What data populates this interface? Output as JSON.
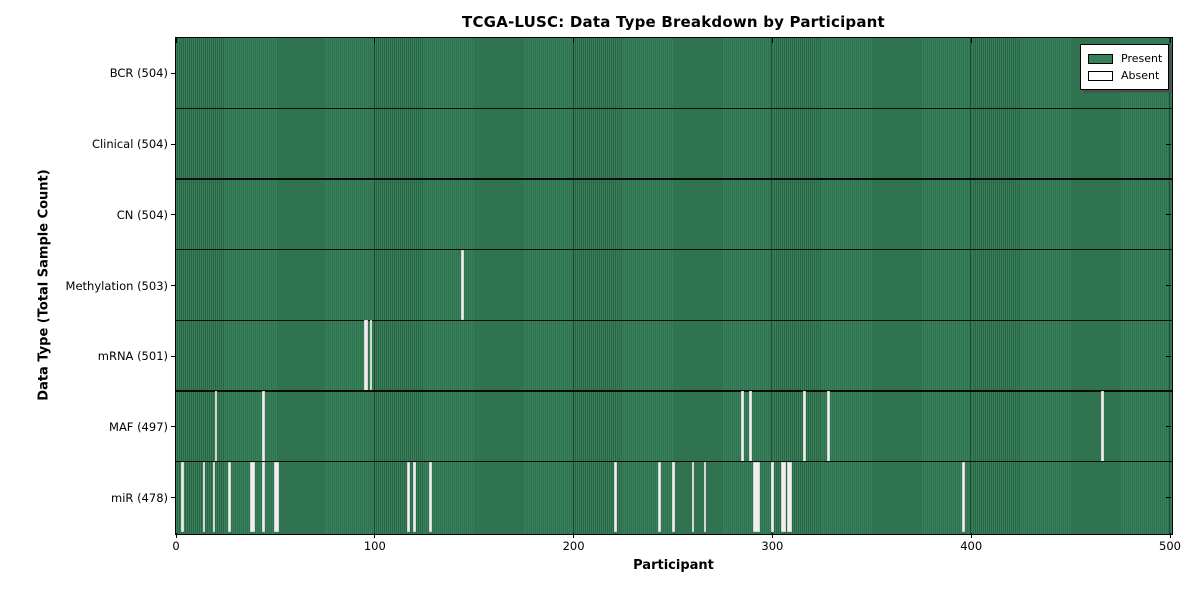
{
  "figure": {
    "title": "TCGA-LUSC: Data Type Breakdown by Participant",
    "xlabel": "Participant",
    "ylabel": "Data Type (Total Sample Count)"
  },
  "legend": {
    "items": [
      {
        "label": "Present",
        "color": "#37815a"
      },
      {
        "label": "Absent",
        "color": "#ffffff"
      }
    ]
  },
  "chart_data": {
    "type": "heatmap",
    "title": "TCGA-LUSC: Data Type Breakdown by Participant",
    "xlabel": "Participant",
    "ylabel": "Data Type (Total Sample Count)",
    "x_ticks": [
      0,
      100,
      200,
      300,
      400,
      500
    ],
    "xlim": [
      0,
      500.5
    ],
    "grid": "vertical-at-xticks",
    "legend_position": "upper-right-inside",
    "colors": {
      "present": "#2e8b57",
      "absent": "#ffffff"
    },
    "rows": [
      {
        "label": "BCR",
        "total": 504,
        "display": "BCR (504)",
        "absent": []
      },
      {
        "label": "Clinical",
        "total": 504,
        "display": "Clinical (504)",
        "absent": []
      },
      {
        "label": "CN",
        "total": 504,
        "display": "CN (504)",
        "absent": []
      },
      {
        "label": "Methylation",
        "total": 503,
        "display": "Methylation (503)",
        "absent": [
          {
            "pos": 144,
            "w": 1
          }
        ]
      },
      {
        "label": "mRNA",
        "total": 501,
        "display": "mRNA (501)",
        "absent": [
          {
            "pos": 95,
            "w": 2
          },
          {
            "pos": 98,
            "w": 1
          }
        ]
      },
      {
        "label": "MAF",
        "total": 497,
        "display": "MAF (497)",
        "absent": [
          {
            "pos": 20,
            "w": 1
          },
          {
            "pos": 44,
            "w": 1
          },
          {
            "pos": 285,
            "w": 1
          },
          {
            "pos": 289,
            "w": 1
          },
          {
            "pos": 316,
            "w": 1
          },
          {
            "pos": 328,
            "w": 1
          },
          {
            "pos": 466,
            "w": 1
          }
        ]
      },
      {
        "label": "miR",
        "total": 478,
        "display": "miR (478)",
        "absent": [
          {
            "pos": 3,
            "w": 1
          },
          {
            "pos": 14,
            "w": 1
          },
          {
            "pos": 19,
            "w": 1
          },
          {
            "pos": 27,
            "w": 1
          },
          {
            "pos": 38,
            "w": 2
          },
          {
            "pos": 44,
            "w": 1
          },
          {
            "pos": 50,
            "w": 2
          },
          {
            "pos": 117,
            "w": 1
          },
          {
            "pos": 120,
            "w": 1
          },
          {
            "pos": 128,
            "w": 1
          },
          {
            "pos": 221,
            "w": 1
          },
          {
            "pos": 243,
            "w": 1
          },
          {
            "pos": 250,
            "w": 1
          },
          {
            "pos": 260,
            "w": 1
          },
          {
            "pos": 266,
            "w": 1
          },
          {
            "pos": 291,
            "w": 3
          },
          {
            "pos": 300,
            "w": 1
          },
          {
            "pos": 305,
            "w": 2
          },
          {
            "pos": 308,
            "w": 2
          },
          {
            "pos": 396,
            "w": 1
          }
        ]
      }
    ]
  }
}
